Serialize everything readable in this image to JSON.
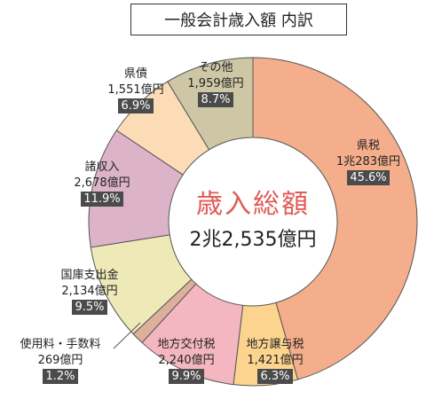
{
  "title": "一般会計歳入額 内訳",
  "center": {
    "label": "歳入総額",
    "total": "2兆2,535億円"
  },
  "chart_data": {
    "type": "pie",
    "title": "一般会計歳入額 内訳",
    "total_label": "2兆2,535億円",
    "slices": [
      {
        "name": "県税",
        "amount": "1兆283億円",
        "percent_label": "45.6%",
        "value": 45.6,
        "color": "#f4ae8c"
      },
      {
        "name": "地方譲与税",
        "amount": "1,421億円",
        "percent_label": "6.3%",
        "value": 6.3,
        "color": "#fcd48f"
      },
      {
        "name": "地方交付税",
        "amount": "2,240億円",
        "percent_label": "9.9%",
        "value": 9.9,
        "color": "#f4b6c0"
      },
      {
        "name": "使用料・手数料",
        "amount": "269億円",
        "percent_label": "1.2%",
        "value": 1.2,
        "color": "#ddb09c"
      },
      {
        "name": "国庫支出金",
        "amount": "2,134億円",
        "percent_label": "9.5%",
        "value": 9.5,
        "color": "#eeeab8"
      },
      {
        "name": "諸収入",
        "amount": "2,678億円",
        "percent_label": "11.9%",
        "value": 11.9,
        "color": "#ddb3c9"
      },
      {
        "name": "県債",
        "amount": "1,551億円",
        "percent_label": "6.9%",
        "value": 6.9,
        "color": "#fbdcb6"
      },
      {
        "name": "その他",
        "amount": "1,959億円",
        "percent_label": "8.7%",
        "value": 8.7,
        "color": "#cdc7a5"
      }
    ]
  }
}
